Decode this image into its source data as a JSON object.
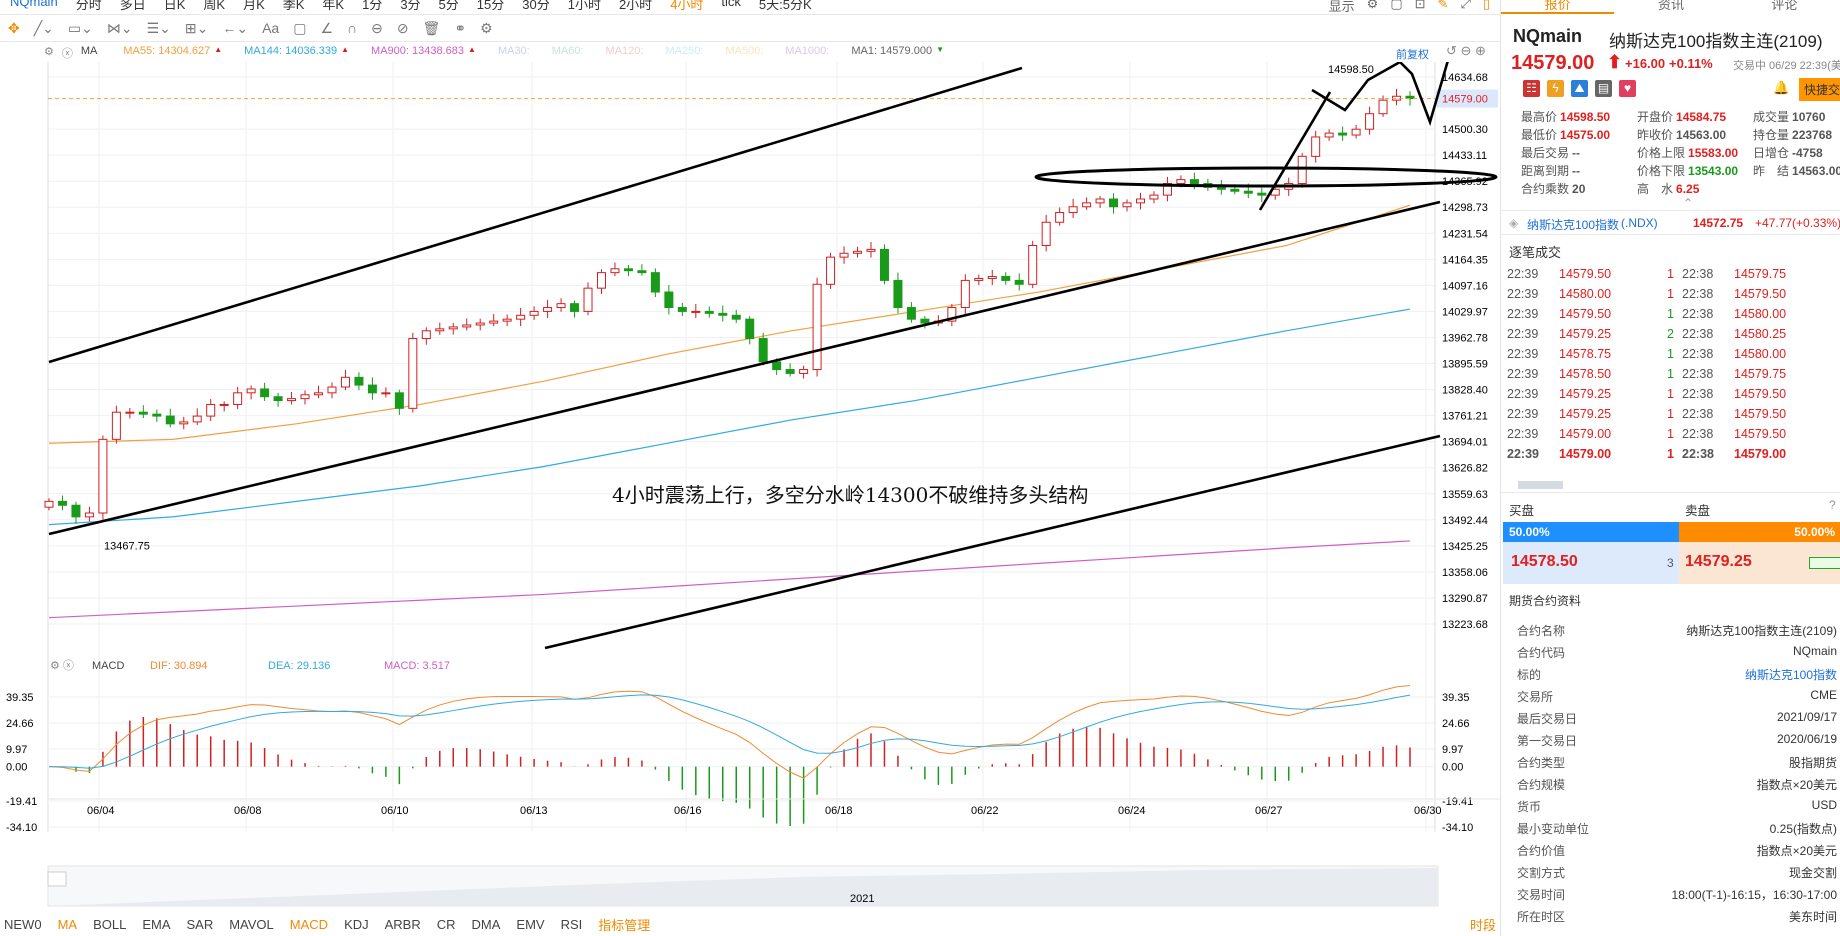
{
  "top_tabs": [
    "NQmain",
    "分时",
    "多日",
    "日K",
    "周K",
    "月K",
    "季K",
    "年K",
    "1分",
    "3分",
    "5分",
    "15分",
    "30分",
    "1小时",
    "2小时",
    "4小时",
    "tick",
    "5天:5分K"
  ],
  "top_tabs_active": "4小时",
  "toolbar": {
    "icons": [
      "move-icon",
      "line-tool-icon",
      "rect-tool-icon",
      "fib-tool-icon",
      "channel-tool-icon",
      "measure-tool-icon",
      "arrow-tool-icon",
      "text-tool-icon",
      "note-tool-icon",
      "angle-icon",
      "magnet-icon",
      "lock-icon",
      "hide-icon",
      "delete-icon",
      "compare-icon",
      "settings-icon"
    ],
    "text_tool": "Aa"
  },
  "top_right": {
    "display": "显示"
  },
  "ma_legend": {
    "name": "MA",
    "items": [
      {
        "label": "MA55: 14304.627",
        "color": "#f0a040",
        "dir": "▲"
      },
      {
        "label": "MA144: 14036.339",
        "color": "#33aadd",
        "dir": "▲"
      },
      {
        "label": "MA900: 13438.683",
        "color": "#d060c0",
        "dir": "▲"
      },
      {
        "label": "MA30:",
        "color": "#c8d4ee"
      },
      {
        "label": "MA60:",
        "color": "#c8e4dc"
      },
      {
        "label": "MA120:",
        "color": "#f4cccc"
      },
      {
        "label": "MA250:",
        "color": "#c8eef4"
      },
      {
        "label": "MA500:",
        "color": "#f8e4c0"
      },
      {
        "label": "MA1000:",
        "color": "#dcc8ee"
      },
      {
        "label": "MA1: 14579.000",
        "color": "#666",
        "dir": "▼"
      }
    ],
    "adjust": "前复权"
  },
  "price_axis": [
    "14634.68",
    "14500.30",
    "14433.11",
    "14365.92",
    "14298.73",
    "14231.54",
    "14164.35",
    "14097.16",
    "14029.97",
    "13962.78",
    "13895.59",
    "13828.40",
    "13761.21",
    "13694.01",
    "13626.82",
    "13559.63",
    "13492.44",
    "13425.25",
    "13358.06",
    "13290.87",
    "13223.68"
  ],
  "price_range": [
    13223.68,
    14634.68
  ],
  "last_price_label": "14579.00",
  "high_label": "14598.50",
  "low_label": "13467.75",
  "annotation": "4小时震荡上行，多空分水岭14300不破维持多头结构",
  "closes": [
    13540,
    13530,
    13500,
    13510,
    13700,
    13770,
    13770,
    13765,
    13760,
    13740,
    13745,
    13760,
    13790,
    13790,
    13820,
    13830,
    13810,
    13800,
    13805,
    13815,
    13820,
    13835,
    13860,
    13840,
    13820,
    13820,
    13780,
    13960,
    13980,
    13985,
    13990,
    13995,
    14000,
    14005,
    14010,
    14020,
    14030,
    14040,
    14050,
    14030,
    14090,
    14130,
    14140,
    14135,
    14130,
    14080,
    14040,
    14030,
    14030,
    14025,
    14020,
    14010,
    13960,
    13900,
    13880,
    13870,
    13880,
    14100,
    14170,
    14180,
    14185,
    14190,
    14110,
    14040,
    14010,
    14000,
    14005,
    14040,
    14110,
    14115,
    14120,
    14110,
    14100,
    14200,
    14260,
    14285,
    14300,
    14310,
    14320,
    14300,
    14310,
    14320,
    14330,
    14360,
    14370,
    14360,
    14350,
    14345,
    14340,
    14335,
    14330,
    14345,
    14360,
    14430,
    14480,
    14490,
    14485,
    14500,
    14540,
    14575,
    14585,
    14579
  ],
  "ma_lines": {
    "ma55": [
      13690,
      13700,
      13740,
      13790,
      13850,
      13920,
      13980,
      14030,
      14080,
      14140,
      14200,
      14304
    ],
    "ma144": [
      13480,
      13500,
      13540,
      13580,
      13630,
      13690,
      13750,
      13800,
      13860,
      13920,
      13980,
      14036
    ],
    "ma900": [
      13240,
      13255,
      13270,
      13285,
      13300,
      13320,
      13340,
      13360,
      13380,
      13400,
      13420,
      13438
    ]
  },
  "macd_legend": {
    "name": "MACD",
    "dif": "DIF: 30.894",
    "dea": "DEA: 29.136",
    "macd": "MACD: 3.517"
  },
  "macd_axis": [
    "39.35",
    "24.66",
    "9.97",
    "0.00",
    "-19.41",
    "-34.10"
  ],
  "macd_range": [
    -34.1,
    39.35
  ],
  "dates": [
    "06/04",
    "06/08",
    "06/10",
    "06/13",
    "06/16",
    "06/18",
    "06/22",
    "06/24",
    "06/27",
    "06/30"
  ],
  "navigator_year": "2021",
  "indicators": [
    "NEW0",
    "MA",
    "BOLL",
    "EMA",
    "SAR",
    "MAVOL",
    "MACD",
    "KDJ",
    "ARBR",
    "CR",
    "DMA",
    "EMV",
    "RSI",
    "指标管理"
  ],
  "period_btn": "时段",
  "right": {
    "tabs": [
      "报价",
      "资讯",
      "评论"
    ],
    "symbol": "NQmain",
    "name": "纳斯达克100指数主连(2109)",
    "price": "14579.00",
    "change": "+16.00",
    "pct": "+0.11%",
    "status": "交易中 06/29 22:39(美东",
    "quick_trade": "快捷交易",
    "stats": [
      [
        {
          "k": "最高价",
          "v": "14598.50",
          "c": "red"
        },
        {
          "k": "开盘价",
          "v": "14584.75",
          "c": "red"
        },
        {
          "k": "成交量",
          "v": "10760",
          "c": "gray"
        }
      ],
      [
        {
          "k": "最低价",
          "v": "14575.00",
          "c": "red"
        },
        {
          "k": "昨收价",
          "v": "14563.00",
          "c": "gray"
        },
        {
          "k": "持仓量",
          "v": "223768",
          "c": "gray"
        }
      ],
      [
        {
          "k": "最后交易",
          "v": "--",
          "c": "gray"
        },
        {
          "k": "价格上限",
          "v": "15583.00",
          "c": "red"
        },
        {
          "k": "日增仓",
          "v": "-4758",
          "c": "gray"
        }
      ],
      [
        {
          "k": "距离到期",
          "v": "--",
          "c": "gray"
        },
        {
          "k": "价格下限",
          "v": "13543.00",
          "c": "grn"
        },
        {
          "k": "昨　结",
          "v": "14563.00",
          "c": "gray"
        }
      ],
      [
        {
          "k": "合约乘数",
          "v": "20",
          "c": "gray"
        },
        {
          "k": "高　水",
          "v": "6.25",
          "c": "red"
        }
      ]
    ],
    "index": {
      "name": "纳斯达克100指数",
      "code": "(.NDX)",
      "price": "14572.75",
      "change": "+47.77(+0.33%)"
    },
    "trades_title": "逐笔成交",
    "trades": [
      [
        "22:39",
        "14579.50",
        "1",
        "red",
        "22:38",
        "14579.75"
      ],
      [
        "22:39",
        "14580.00",
        "1",
        "red",
        "22:38",
        "14579.50"
      ],
      [
        "22:39",
        "14579.50",
        "1",
        "grn",
        "22:38",
        "14580.00"
      ],
      [
        "22:39",
        "14579.25",
        "2",
        "grn",
        "22:38",
        "14580.25"
      ],
      [
        "22:39",
        "14578.75",
        "1",
        "grn",
        "22:38",
        "14580.00"
      ],
      [
        "22:39",
        "14578.50",
        "1",
        "grn",
        "22:38",
        "14579.75"
      ],
      [
        "22:39",
        "14579.25",
        "1",
        "red",
        "22:38",
        "14579.50"
      ],
      [
        "22:39",
        "14579.25",
        "1",
        "red",
        "22:38",
        "14579.50"
      ],
      [
        "22:39",
        "14579.00",
        "1",
        "red",
        "22:38",
        "14579.50"
      ],
      [
        "22:39",
        "14579.00",
        "1",
        "red",
        "22:38",
        "14579.00"
      ]
    ],
    "buy_label": "买盘",
    "sell_label": "卖盘",
    "buy_pct": "50.00%",
    "sell_pct": "50.00%",
    "bid": "14578.50",
    "bid_size": "3",
    "ask": "14579.25",
    "info_title": "期货合约资料",
    "info": [
      [
        "合约名称",
        "纳斯达克100指数主连(2109)"
      ],
      [
        "合约代码",
        "NQmain"
      ],
      [
        "标的",
        "纳斯达克100指数"
      ],
      [
        "交易所",
        "CME"
      ],
      [
        "最后交易日",
        "2021/09/17"
      ],
      [
        "第一交易日",
        "2020/06/19"
      ],
      [
        "合约类型",
        "股指期货"
      ],
      [
        "合约规模",
        "指数点×20美元"
      ],
      [
        "货币",
        "USD"
      ],
      [
        "最小变动单位",
        "0.25(指数点)"
      ],
      [
        "合约价值",
        "指数点×20美元"
      ],
      [
        "交割方式",
        "现金交割"
      ],
      [
        "交易时间",
        "18:00(T-1)-16:15，16:30-17:00"
      ],
      [
        "所在时区",
        "美东时间"
      ]
    ]
  },
  "colors": {
    "up": "#e02020",
    "down": "#1a9a1a",
    "accent": "#f08a00",
    "buy": "#1e8fff",
    "sell": "#ff8c00"
  }
}
